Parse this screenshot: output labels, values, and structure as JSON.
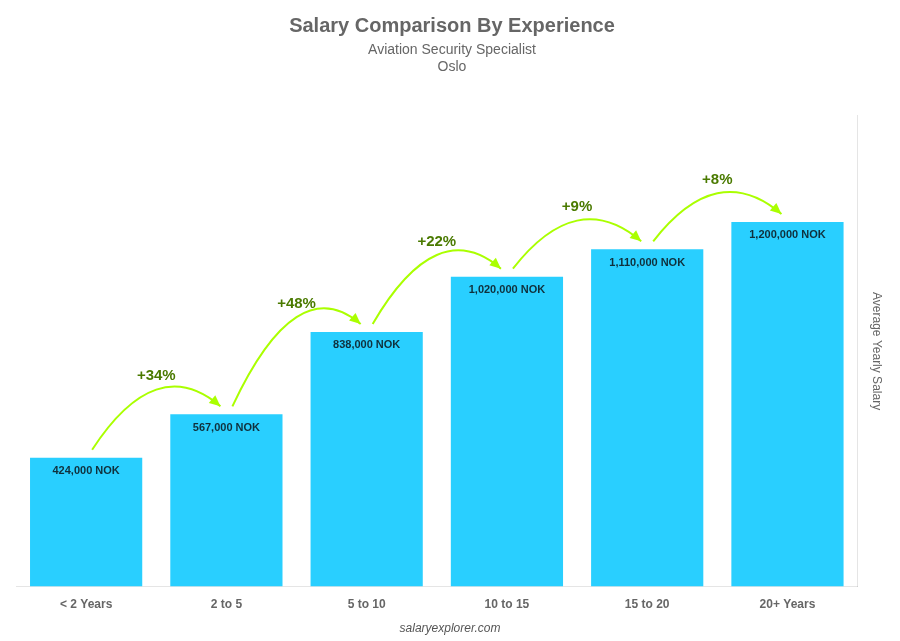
{
  "chart_data": {
    "type": "bar",
    "title": "Salary Comparison By Experience",
    "subtitle": "Aviation Security Specialist",
    "city": "Oslo",
    "categories": [
      "< 2 Years",
      "2 to 5",
      "5 to 10",
      "10 to 15",
      "15 to 20",
      "20+ Years"
    ],
    "values": [
      424000,
      567000,
      838000,
      1020000,
      1110000,
      1200000
    ],
    "value_labels": [
      "424,000 NOK",
      "567,000 NOK",
      "838,000 NOK",
      "1,020,000 NOK",
      "1,110,000 NOK",
      "1,200,000 NOK"
    ],
    "data_labels": true,
    "color": "#29CFFF",
    "ylabel": "Average Yearly Salary",
    "ylim": [
      0,
      1550000
    ],
    "grid": false,
    "tick_labels": "x",
    "annotations": [
      {
        "text": "+34%",
        "from": "< 2 Years",
        "to": "2 to 5",
        "color": "#aaff00"
      },
      {
        "text": "+48%",
        "from": "2 to 5",
        "to": "5 to 10",
        "color": "#aaff00"
      },
      {
        "text": "+22%",
        "from": "5 to 10",
        "to": "10 to 15",
        "color": "#aaff00"
      },
      {
        "text": "+9%",
        "from": "10 to 15",
        "to": "15 to 20",
        "color": "#aaff00"
      },
      {
        "text": "+8%",
        "from": "15 to 20",
        "to": "20+ Years",
        "color": "#aaff00"
      }
    ],
    "watermark": "salaryexplorer.com"
  }
}
